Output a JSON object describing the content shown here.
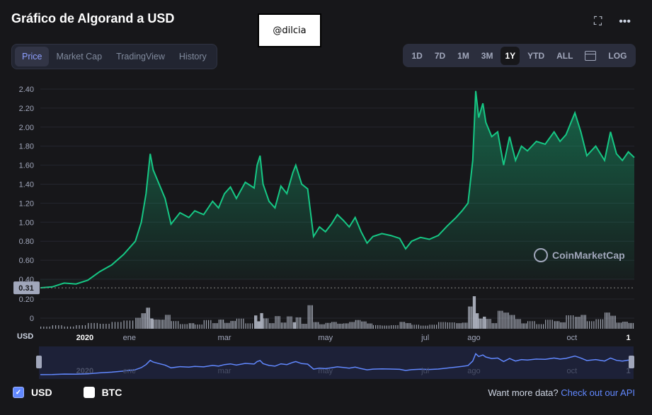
{
  "header": {
    "title": "Gráfico de Algorand a USD",
    "watermark": "@dilcia",
    "fullscreen_icon": "fullscreen-icon",
    "more_icon": "more-icon"
  },
  "tabs": [
    {
      "label": "Price",
      "active": true
    },
    {
      "label": "Market Cap",
      "active": false
    },
    {
      "label": "TradingView",
      "active": false
    },
    {
      "label": "History",
      "active": false
    }
  ],
  "ranges": [
    {
      "label": "1D",
      "active": false
    },
    {
      "label": "7D",
      "active": false
    },
    {
      "label": "1M",
      "active": false
    },
    {
      "label": "3M",
      "active": false
    },
    {
      "label": "1Y",
      "active": true
    },
    {
      "label": "YTD",
      "active": false
    },
    {
      "label": "ALL",
      "active": false
    },
    {
      "label": "LOG",
      "active": false
    }
  ],
  "branding": "CoinMarketCap",
  "legend": [
    {
      "label": "USD",
      "checked": true
    },
    {
      "label": "BTC",
      "checked": false
    }
  ],
  "api": {
    "text": "Want more data?",
    "link": "Check out our API"
  },
  "colors": {
    "line": "#16c784",
    "accent": "#6188ff",
    "background": "#17171a"
  },
  "chart_data": {
    "type": "area",
    "ylim": [
      0,
      2.5
    ],
    "yticks": [
      "2.40",
      "2.20",
      "2.00",
      "1.80",
      "1.60",
      "1.40",
      "1.20",
      "1.00",
      "0.80",
      "0.60",
      "0.40"
    ],
    "start_label": "0.31",
    "volume_ticks": [
      "0.20",
      "0"
    ],
    "axis_unit": "USD",
    "xticks": [
      {
        "label": "2020",
        "bold": true,
        "t": 0.075
      },
      {
        "label": "ene",
        "bold": false,
        "t": 0.15
      },
      {
        "label": "mar",
        "bold": false,
        "t": 0.31
      },
      {
        "label": "may",
        "bold": false,
        "t": 0.48
      },
      {
        "label": "jul",
        "bold": false,
        "t": 0.648
      },
      {
        "label": "ago",
        "bold": false,
        "t": 0.73
      },
      {
        "label": "oct",
        "bold": false,
        "t": 0.895
      },
      {
        "label": "1",
        "bold": true,
        "t": 0.99
      }
    ],
    "price": [
      [
        0.0,
        0.31
      ],
      [
        0.02,
        0.32
      ],
      [
        0.04,
        0.36
      ],
      [
        0.06,
        0.35
      ],
      [
        0.08,
        0.39
      ],
      [
        0.1,
        0.48
      ],
      [
        0.12,
        0.55
      ],
      [
        0.14,
        0.66
      ],
      [
        0.16,
        0.8
      ],
      [
        0.17,
        1.0
      ],
      [
        0.178,
        1.3
      ],
      [
        0.185,
        1.72
      ],
      [
        0.19,
        1.55
      ],
      [
        0.2,
        1.4
      ],
      [
        0.21,
        1.25
      ],
      [
        0.22,
        0.98
      ],
      [
        0.235,
        1.1
      ],
      [
        0.25,
        1.05
      ],
      [
        0.26,
        1.12
      ],
      [
        0.275,
        1.08
      ],
      [
        0.29,
        1.22
      ],
      [
        0.3,
        1.15
      ],
      [
        0.31,
        1.3
      ],
      [
        0.32,
        1.37
      ],
      [
        0.33,
        1.25
      ],
      [
        0.345,
        1.42
      ],
      [
        0.36,
        1.36
      ],
      [
        0.365,
        1.6
      ],
      [
        0.37,
        1.7
      ],
      [
        0.375,
        1.4
      ],
      [
        0.385,
        1.22
      ],
      [
        0.395,
        1.15
      ],
      [
        0.405,
        1.38
      ],
      [
        0.415,
        1.3
      ],
      [
        0.425,
        1.52
      ],
      [
        0.43,
        1.6
      ],
      [
        0.44,
        1.4
      ],
      [
        0.45,
        1.35
      ],
      [
        0.46,
        0.85
      ],
      [
        0.47,
        0.95
      ],
      [
        0.48,
        0.9
      ],
      [
        0.49,
        0.98
      ],
      [
        0.5,
        1.08
      ],
      [
        0.51,
        1.02
      ],
      [
        0.52,
        0.95
      ],
      [
        0.53,
        1.05
      ],
      [
        0.54,
        0.9
      ],
      [
        0.55,
        0.78
      ],
      [
        0.56,
        0.85
      ],
      [
        0.575,
        0.88
      ],
      [
        0.59,
        0.86
      ],
      [
        0.605,
        0.83
      ],
      [
        0.615,
        0.72
      ],
      [
        0.625,
        0.8
      ],
      [
        0.64,
        0.84
      ],
      [
        0.655,
        0.82
      ],
      [
        0.67,
        0.86
      ],
      [
        0.685,
        0.96
      ],
      [
        0.7,
        1.05
      ],
      [
        0.71,
        1.12
      ],
      [
        0.72,
        1.2
      ],
      [
        0.728,
        1.65
      ],
      [
        0.733,
        2.38
      ],
      [
        0.738,
        2.1
      ],
      [
        0.745,
        2.25
      ],
      [
        0.75,
        2.05
      ],
      [
        0.76,
        1.9
      ],
      [
        0.77,
        1.95
      ],
      [
        0.78,
        1.6
      ],
      [
        0.79,
        1.9
      ],
      [
        0.8,
        1.65
      ],
      [
        0.81,
        1.8
      ],
      [
        0.82,
        1.75
      ],
      [
        0.835,
        1.85
      ],
      [
        0.85,
        1.82
      ],
      [
        0.865,
        1.95
      ],
      [
        0.875,
        1.85
      ],
      [
        0.885,
        1.92
      ],
      [
        0.9,
        2.15
      ],
      [
        0.91,
        1.95
      ],
      [
        0.92,
        1.7
      ],
      [
        0.935,
        1.8
      ],
      [
        0.95,
        1.65
      ],
      [
        0.96,
        1.95
      ],
      [
        0.97,
        1.72
      ],
      [
        0.98,
        1.65
      ],
      [
        0.99,
        1.74
      ],
      [
        1.0,
        1.68
      ]
    ]
  }
}
